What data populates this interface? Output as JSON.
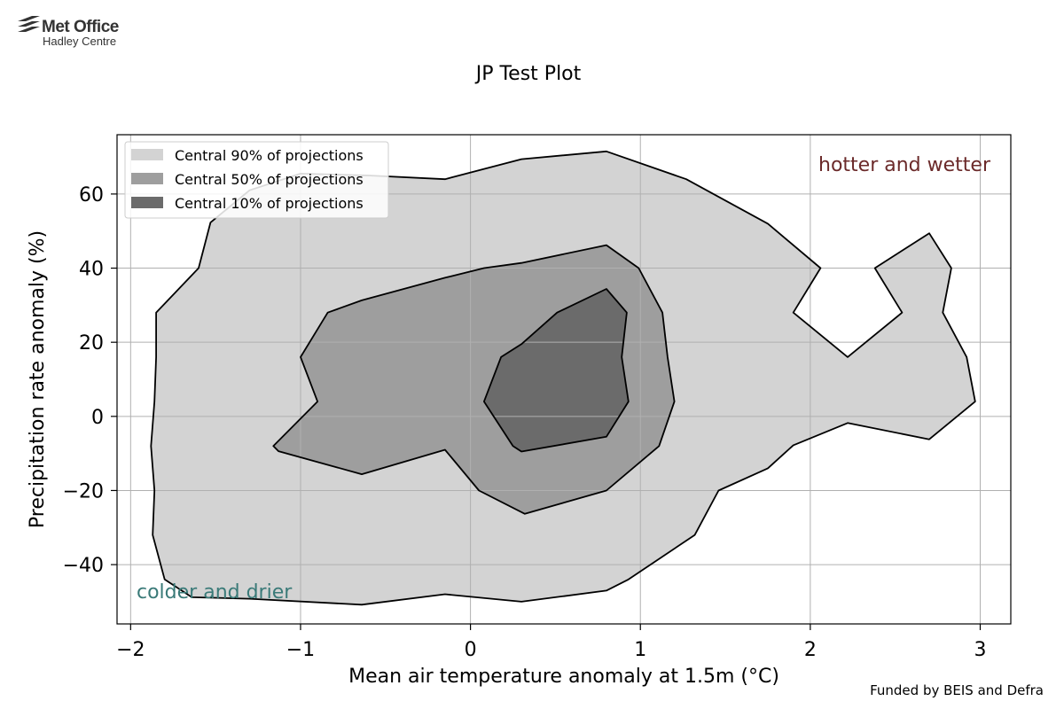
{
  "logo": {
    "line1": "Met Office",
    "line2": "Hadley Centre"
  },
  "footer": "Funded by BEIS and Defra",
  "chart_data": {
    "type": "area",
    "title": "JP Test Plot",
    "xlabel": "Mean air temperature anomaly at 1.5m (°C)",
    "ylabel": "Precipitation rate anomaly (%)",
    "xlim": [
      -2.08,
      3.18
    ],
    "ylim": [
      -56,
      76
    ],
    "xticks": [
      -2,
      -1,
      0,
      1,
      2,
      3
    ],
    "xtick_labels": [
      "−2",
      "−1",
      "0",
      "1",
      "2",
      "3"
    ],
    "yticks": [
      -40,
      -20,
      0,
      20,
      40,
      60
    ],
    "ytick_labels": [
      "−40",
      "−20",
      "0",
      "20",
      "40",
      "60"
    ],
    "grid": true,
    "legend_position": "top-left",
    "annotations": [
      {
        "text": "hotter and wetter",
        "position": "top-right",
        "color": "#6b2a2a"
      },
      {
        "text": "colder and drier",
        "position": "bottom-left",
        "color": "#3a7a78"
      }
    ],
    "series": [
      {
        "name": "Central 90% of projections",
        "color": "#d3d3d3",
        "points": [
          [
            -1.6,
            40
          ],
          [
            -1.53,
            52.3
          ],
          [
            -1.3,
            61
          ],
          [
            -1.0,
            65.5
          ],
          [
            -0.6,
            65
          ],
          [
            -0.15,
            64
          ],
          [
            0.3,
            69.4
          ],
          [
            0.8,
            71.5
          ],
          [
            1.27,
            64
          ],
          [
            1.75,
            52
          ],
          [
            2.06,
            40
          ],
          [
            1.9,
            28
          ],
          [
            2.22,
            16
          ],
          [
            2.54,
            28
          ],
          [
            2.38,
            40
          ],
          [
            2.7,
            49.4
          ],
          [
            2.83,
            40
          ],
          [
            2.78,
            28
          ],
          [
            2.92,
            16
          ],
          [
            2.97,
            4
          ],
          [
            2.7,
            -6.2
          ],
          [
            2.22,
            -1.8
          ],
          [
            1.9,
            -7.8
          ],
          [
            1.75,
            -14
          ],
          [
            1.46,
            -20
          ],
          [
            1.32,
            -32
          ],
          [
            0.93,
            -44
          ],
          [
            0.8,
            -47
          ],
          [
            0.3,
            -50
          ],
          [
            -0.15,
            -48
          ],
          [
            -0.64,
            -50.8
          ],
          [
            -1.3,
            -49.2
          ],
          [
            -1.64,
            -48.8
          ],
          [
            -1.8,
            -44
          ],
          [
            -1.87,
            -32
          ],
          [
            -1.86,
            -20
          ],
          [
            -1.88,
            -8
          ],
          [
            -1.86,
            4
          ],
          [
            -1.85,
            16
          ],
          [
            -1.85,
            28
          ]
        ]
      },
      {
        "name": "Central 50% of projections",
        "color": "#9e9e9e",
        "points": [
          [
            -0.64,
            31.3
          ],
          [
            -0.15,
            37.4
          ],
          [
            0.08,
            40
          ],
          [
            0.3,
            41.4
          ],
          [
            0.8,
            46.2
          ],
          [
            0.99,
            40
          ],
          [
            1.13,
            28
          ],
          [
            1.16,
            16
          ],
          [
            1.2,
            4
          ],
          [
            1.11,
            -8
          ],
          [
            0.8,
            -20
          ],
          [
            0.32,
            -26.3
          ],
          [
            0.05,
            -20
          ],
          [
            -0.15,
            -9
          ],
          [
            -0.64,
            -15.6
          ],
          [
            -1.13,
            -9.4
          ],
          [
            -1.16,
            -8
          ],
          [
            -0.9,
            4
          ],
          [
            -1.0,
            16
          ],
          [
            -0.84,
            28
          ]
        ]
      },
      {
        "name": "Central 10% of projections",
        "color": "#6b6b6b",
        "points": [
          [
            0.18,
            16
          ],
          [
            0.3,
            19.5
          ],
          [
            0.51,
            28
          ],
          [
            0.8,
            34.4
          ],
          [
            0.92,
            28
          ],
          [
            0.89,
            16
          ],
          [
            0.93,
            4
          ],
          [
            0.8,
            -5.5
          ],
          [
            0.3,
            -9.5
          ],
          [
            0.25,
            -8
          ],
          [
            0.08,
            4
          ]
        ]
      }
    ]
  }
}
